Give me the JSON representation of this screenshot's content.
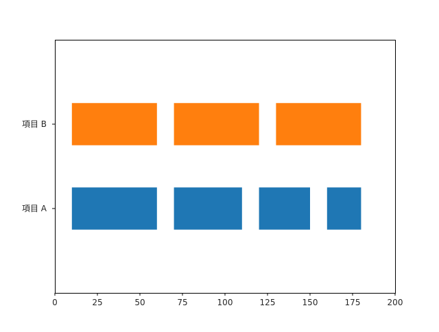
{
  "chart_data": {
    "type": "broken_barh",
    "title": "",
    "xlabel": "",
    "ylabel": "",
    "xlim": [
      0,
      200
    ],
    "ylim": [
      -1,
      1
    ],
    "x_ticks": [
      0,
      25,
      50,
      75,
      100,
      125,
      150,
      175,
      200
    ],
    "grid": false,
    "categories": [
      "項目 A",
      "項目 B"
    ],
    "series": [
      {
        "category": "項目 A",
        "color": "#1f77b4",
        "segments": [
          {
            "start": 10,
            "width": 50
          },
          {
            "start": 70,
            "width": 40
          },
          {
            "start": 120,
            "width": 30
          },
          {
            "start": 160,
            "width": 20
          }
        ]
      },
      {
        "category": "項目 B",
        "color": "#ff7f0e",
        "segments": [
          {
            "start": 10,
            "width": 50
          },
          {
            "start": 70,
            "width": 50
          },
          {
            "start": 130,
            "width": 50
          }
        ]
      }
    ]
  }
}
